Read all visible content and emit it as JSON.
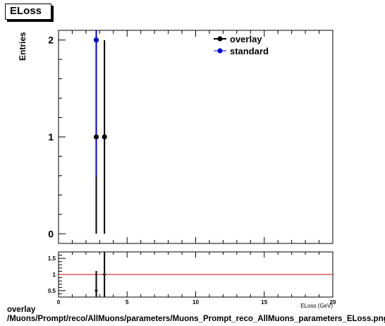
{
  "histogram_name": "ELoss",
  "footer_line1": "overlay",
  "footer_line2": "/Muons/Prompt/reco/AllMuons/parameters/Muons_Prompt_reco_AllMuons_parameters_ELoss.png",
  "colors": {
    "overlay": "#000000",
    "standard": "#0000cc",
    "ratio_line": "#cc0000"
  },
  "chart_data": [
    {
      "type": "scatter",
      "title": "",
      "xlabel": "ELoss (GeV)",
      "ylabel": "Entries",
      "xlim": [
        0,
        20
      ],
      "ylim": [
        -0.1,
        2.1
      ],
      "y_ticks": [
        "0",
        "1",
        "2"
      ],
      "x_ticks": [],
      "grid": false,
      "legend_position": "top-right",
      "series": [
        {
          "name": "overlay",
          "x": [
            2.75,
            3.35
          ],
          "y": [
            1,
            1
          ],
          "yerr": [
            1,
            1
          ]
        },
        {
          "name": "standard",
          "x": [
            2.75
          ],
          "y": [
            2
          ],
          "yerr": [
            1.41
          ]
        }
      ]
    },
    {
      "type": "scatter",
      "title": "",
      "xlabel": "ELoss (GeV)",
      "ylabel": "",
      "xlim": [
        0,
        20
      ],
      "ylim": [
        0.3,
        1.7
      ],
      "y_ticks": [
        "0.5",
        "1",
        "1.5"
      ],
      "x_ticks": [
        "0",
        "5",
        "10",
        "15",
        "20"
      ],
      "grid": false,
      "reference_line": 1,
      "series": [
        {
          "x": [
            2.75,
            3.35
          ],
          "y": [
            0.5,
            1.0
          ],
          "yerr": [
            0.61,
            1.22
          ]
        }
      ]
    }
  ]
}
